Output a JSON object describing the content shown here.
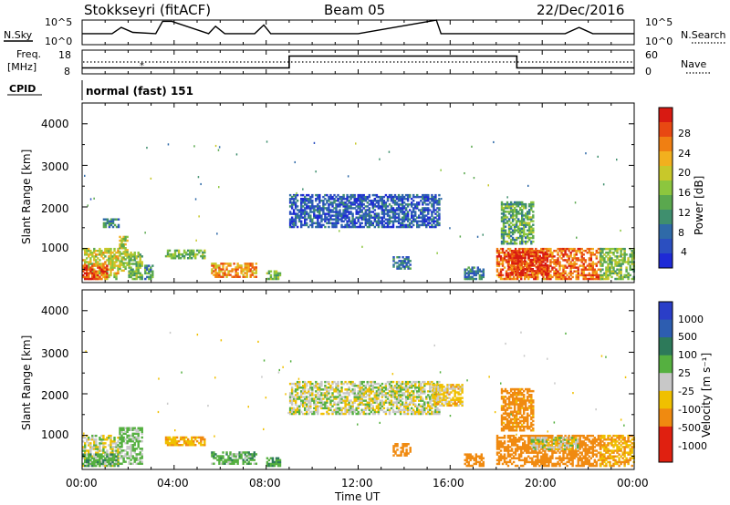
{
  "header": {
    "title": "Stokkseyri (fitACF)",
    "beam": "Beam 05",
    "date": "22/Dec/2016"
  },
  "colors": {
    "trace": "#000000",
    "gs_grey": "#c8c8c8",
    "frame": "#000000"
  },
  "nsky_panel": {
    "left_label": "N.Sky",
    "right_label": "N.Search",
    "left_ticks": [
      "10^5",
      "10^0"
    ],
    "right_ticks": [
      "10^5",
      "10^0"
    ]
  },
  "freq_panel": {
    "left_label_line1": "Freq.",
    "left_label_line2": "[MHz]",
    "left_ticks": [
      "18",
      "8"
    ],
    "right_ticks": [
      "60",
      "0"
    ],
    "right_label": "Nave"
  },
  "cpid_panel": {
    "label": "CPID",
    "program": "normal (fast) 151"
  },
  "x_axis": {
    "label": "Time UT",
    "tick_labels": [
      "00:00",
      "04:00",
      "08:00",
      "12:00",
      "16:00",
      "20:00",
      "00:00"
    ]
  },
  "power_panel": {
    "ylabel": "Slant Range [km]",
    "y_ticks": [
      "4000",
      "3000",
      "2000",
      "1000"
    ],
    "colorbar_label": "Power [dB]",
    "colorbar_ticks": [
      "28",
      "24",
      "20",
      "16",
      "12",
      "8",
      "4"
    ]
  },
  "velocity_panel": {
    "ylabel": "Slant Range [km]",
    "y_ticks": [
      "4000",
      "3000",
      "2000",
      "1000"
    ],
    "colorbar_label": "Velocity [m s⁻¹]",
    "colorbar_ticks": [
      "1000",
      "500",
      "100",
      "25",
      "-25",
      "-100",
      "-500",
      "-1000"
    ]
  },
  "chart_data": [
    {
      "type": "line",
      "name": "n_sky_trace",
      "x_hours": [
        0,
        1.3,
        1.7,
        2.2,
        3.2,
        3.5,
        3.9,
        5.5,
        5.8,
        6.2,
        7.5,
        7.9,
        8.2,
        12,
        15.4,
        15.6,
        18,
        21,
        21.6,
        22.2,
        24
      ],
      "y_level": [
        0.45,
        0.45,
        0.7,
        0.5,
        0.45,
        0.95,
        0.95,
        0.45,
        0.75,
        0.45,
        0.45,
        0.8,
        0.45,
        0.45,
        1.0,
        0.45,
        0.45,
        0.45,
        0.7,
        0.45,
        0.45
      ]
    },
    {
      "type": "line",
      "name": "frequency_and_nave",
      "step_hours": [
        0,
        9.0,
        18.9,
        24
      ],
      "nave_level": [
        0.25,
        0.75,
        0.25,
        0.25
      ],
      "freq_level": 0.5
    },
    {
      "type": "heatmap",
      "title": "Power [dB]",
      "x_range_hours": [
        0,
        24
      ],
      "y_range_km": [
        180,
        4500
      ],
      "scale_db": [
        0,
        30
      ],
      "regions": [
        {
          "t": [
            0,
            1.6
          ],
          "r": [
            250,
            1000
          ],
          "db": 18
        },
        {
          "t": [
            0,
            1.1
          ],
          "r": [
            250,
            600
          ],
          "db": 26
        },
        {
          "t": [
            1.6,
            2.0
          ],
          "r": [
            450,
            1300
          ],
          "db": 16
        },
        {
          "t": [
            2.0,
            2.6
          ],
          "r": [
            250,
            900
          ],
          "db": 14
        },
        {
          "t": [
            2.7,
            3.1
          ],
          "r": [
            250,
            600
          ],
          "db": 10
        },
        {
          "t": [
            0.9,
            1.6
          ],
          "r": [
            1500,
            1700
          ],
          "db": 8
        },
        {
          "t": [
            3.6,
            5.3
          ],
          "r": [
            750,
            950
          ],
          "db": 14
        },
        {
          "t": [
            5.6,
            7.6
          ],
          "r": [
            300,
            650
          ],
          "db": 22
        },
        {
          "t": [
            8.0,
            8.6
          ],
          "r": [
            250,
            450
          ],
          "db": 12
        },
        {
          "t": [
            9.0,
            15.5
          ],
          "r": [
            1500,
            2300
          ],
          "db": 5
        },
        {
          "t": [
            13.5,
            14.3
          ],
          "r": [
            500,
            800
          ],
          "db": 7
        },
        {
          "t": [
            16.6,
            17.4
          ],
          "r": [
            250,
            550
          ],
          "db": 8
        },
        {
          "t": [
            18.0,
            22.5
          ],
          "r": [
            250,
            1000
          ],
          "db": 24
        },
        {
          "t": [
            18.5,
            20.2
          ],
          "r": [
            350,
            900
          ],
          "db": 28
        },
        {
          "t": [
            22.5,
            24.0
          ],
          "r": [
            250,
            1000
          ],
          "db": 14
        },
        {
          "t": [
            18.2,
            19.6
          ],
          "r": [
            1100,
            2100
          ],
          "db": 12
        }
      ]
    },
    {
      "type": "heatmap",
      "title": "Velocity [m s⁻¹]",
      "x_range_hours": [
        0,
        24
      ],
      "y_range_km": [
        180,
        4500
      ],
      "scale_ms": [
        -1000,
        1000
      ],
      "regions": [
        {
          "t": [
            0,
            1.6
          ],
          "r": [
            250,
            1000
          ],
          "v": 0
        },
        {
          "t": [
            0,
            1.6
          ],
          "r": [
            250,
            550
          ],
          "v": 60
        },
        {
          "t": [
            1.6,
            2.6
          ],
          "r": [
            300,
            1200
          ],
          "v": 40
        },
        {
          "t": [
            3.6,
            5.3
          ],
          "r": [
            750,
            950
          ],
          "v": -100
        },
        {
          "t": [
            5.6,
            7.6
          ],
          "r": [
            300,
            600
          ],
          "v": 60
        },
        {
          "t": [
            8.0,
            8.6
          ],
          "r": [
            250,
            450
          ],
          "v": 80
        },
        {
          "t": [
            9.0,
            15.5
          ],
          "r": [
            1500,
            2300
          ],
          "v": 0
        },
        {
          "t": [
            15.2,
            16.5
          ],
          "r": [
            1700,
            2200
          ],
          "v": -50
        },
        {
          "t": [
            13.5,
            14.3
          ],
          "r": [
            500,
            800
          ],
          "v": -200
        },
        {
          "t": [
            16.6,
            17.4
          ],
          "r": [
            250,
            550
          ],
          "v": -200
        },
        {
          "t": [
            18.0,
            22.5
          ],
          "r": [
            250,
            1000
          ],
          "v": -200
        },
        {
          "t": [
            19.5,
            21.5
          ],
          "r": [
            650,
            950
          ],
          "v": 0
        },
        {
          "t": [
            22.5,
            24.0
          ],
          "r": [
            250,
            1000
          ],
          "v": -100
        },
        {
          "t": [
            18.2,
            19.6
          ],
          "r": [
            1100,
            2100
          ],
          "v": -150
        }
      ]
    }
  ]
}
